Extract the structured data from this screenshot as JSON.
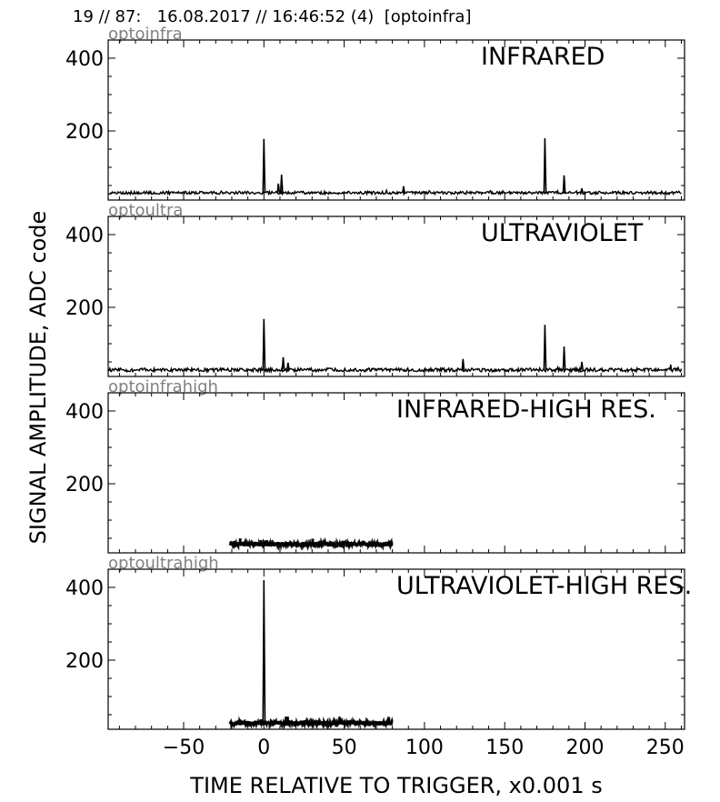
{
  "header": "19 // 87:   16.08.2017 // 16:46:52 (4)  [optoinfra]",
  "xlabel": "TIME RELATIVE TO TRIGGER,   x0.001 s",
  "ylabel": "SIGNAL AMPLITUDE,  ADC code",
  "colors": {
    "trace": "#000000",
    "subplot_label": "#808080",
    "frame": "#000000"
  },
  "chart_data": [
    {
      "type": "line",
      "subplot_label": "optoinfra",
      "title": "INFRARED",
      "xlim": [
        -97,
        262
      ],
      "ylim": [
        10,
        450
      ],
      "xticks": [
        -50,
        0,
        50,
        100,
        150,
        200,
        250
      ],
      "yticks": [
        200,
        400
      ],
      "baseline": 30,
      "noise": 4,
      "x_range": [
        -97,
        260
      ],
      "peaks": [
        {
          "x": 0,
          "y": 178
        },
        {
          "x": 11,
          "y": 80
        },
        {
          "x": 9,
          "y": 55
        },
        {
          "x": 87,
          "y": 48
        },
        {
          "x": 175,
          "y": 180
        },
        {
          "x": 187,
          "y": 78
        },
        {
          "x": 198,
          "y": 42
        }
      ]
    },
    {
      "type": "line",
      "subplot_label": "optoultra",
      "title": "ULTRAVIOLET",
      "xlim": [
        -97,
        262
      ],
      "ylim": [
        10,
        450
      ],
      "xticks": [
        -50,
        0,
        50,
        100,
        150,
        200,
        250
      ],
      "yticks": [
        200,
        400
      ],
      "baseline": 28,
      "noise": 5,
      "x_range": [
        -97,
        260
      ],
      "peaks": [
        {
          "x": 0,
          "y": 168
        },
        {
          "x": 12,
          "y": 63
        },
        {
          "x": 15,
          "y": 48
        },
        {
          "x": 124,
          "y": 58
        },
        {
          "x": 175,
          "y": 152
        },
        {
          "x": 187,
          "y": 92
        },
        {
          "x": 198,
          "y": 50
        }
      ]
    },
    {
      "type": "line",
      "subplot_label": "optoinfrahigh",
      "title": "INFRARED-HIGH RES.",
      "xlim": [
        -97,
        262
      ],
      "ylim": [
        10,
        450
      ],
      "xticks": [
        -50,
        0,
        50,
        100,
        150,
        200,
        250
      ],
      "yticks": [
        200,
        400
      ],
      "baseline": 34,
      "noise": 6,
      "x_range": [
        -21,
        80
      ],
      "peaks": []
    },
    {
      "type": "line",
      "subplot_label": "optoultrahigh",
      "title": "ULTRAVIOLET-HIGH RES.",
      "xlim": [
        -97,
        262
      ],
      "ylim": [
        10,
        450
      ],
      "xticks": [
        -50,
        0,
        50,
        100,
        150,
        200,
        250
      ],
      "yticks": [
        200,
        400
      ],
      "baseline": 27,
      "noise": 6,
      "x_range": [
        -21,
        80
      ],
      "peaks": [
        {
          "x": 0,
          "y": 420
        },
        {
          "x": 47,
          "y": 45
        }
      ]
    }
  ]
}
